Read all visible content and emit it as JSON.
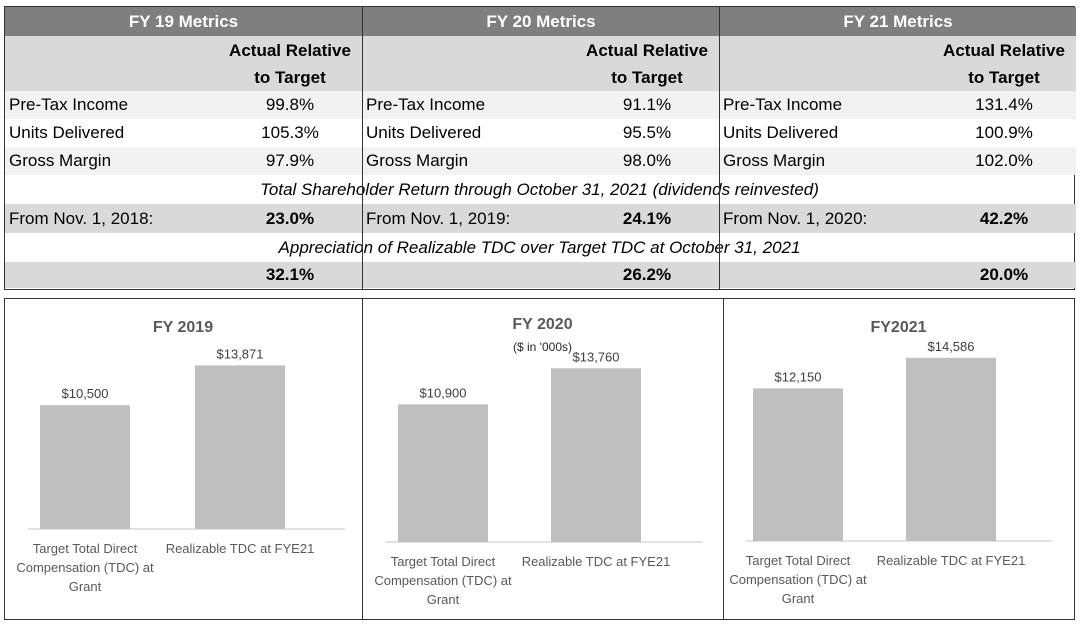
{
  "table": {
    "headers": [
      "FY 19 Metrics",
      "FY 20 Metrics",
      "FY 21 Metrics"
    ],
    "col_header": [
      "Actual Relative",
      "to Target"
    ],
    "metric_rows": [
      {
        "label": "Pre-Tax Income",
        "values": [
          "99.8%",
          "91.1%",
          "131.4%"
        ]
      },
      {
        "label": "Units Delivered",
        "values": [
          "105.3%",
          "95.5%",
          "100.9%"
        ]
      },
      {
        "label": "Gross Margin",
        "values": [
          "97.9%",
          "98.0%",
          "102.0%"
        ]
      }
    ],
    "tsr_title": "Total Shareholder Return through October 31, 2021 (dividends reinvested)",
    "tsr_row": [
      {
        "label": "From Nov. 1, 2018:",
        "value": "23.0%"
      },
      {
        "label": "From Nov. 1, 2019:",
        "value": "24.1%"
      },
      {
        "label": "From Nov. 1, 2020:",
        "value": "42.2%"
      }
    ],
    "appreciation_title": "Appreciation of Realizable TDC over Target TDC at October 31, 2021",
    "appreciation_values": [
      "32.1%",
      "26.2%",
      "20.0%"
    ]
  },
  "chart_data": [
    {
      "type": "bar",
      "title": "FY 2019",
      "subtitle": "",
      "categories": [
        "Target Total Direct Compensation (TDC) at Grant",
        "Realizable TDC at FYE21"
      ],
      "category_lines": [
        [
          "Target Total Direct",
          "Compensation (TDC) at",
          "Grant"
        ],
        [
          "Realizable TDC at FYE21"
        ]
      ],
      "values": [
        10500,
        13871
      ],
      "value_labels": [
        "$10,500",
        "$13,871"
      ],
      "ylim": [
        0,
        16000
      ],
      "bar_color": "#bfbfbf"
    },
    {
      "type": "bar",
      "title": "FY 2020",
      "subtitle": "($ in '000s)",
      "categories": [
        "Target Total Direct Compensation (TDC) at Grant",
        "Realizable TDC at FYE21"
      ],
      "category_lines": [
        [
          "Target Total Direct",
          "Compensation (TDC) at",
          "Grant"
        ],
        [
          "Realizable TDC at FYE21"
        ]
      ],
      "values": [
        10900,
        13760
      ],
      "value_labels": [
        "$10,900",
        "$13,760"
      ],
      "ylim": [
        0,
        16000
      ],
      "bar_color": "#bfbfbf"
    },
    {
      "type": "bar",
      "title": "FY2021",
      "subtitle": "",
      "categories": [
        "Target Total Direct Compensation (TDC) at Grant",
        "Realizable TDC at FYE21"
      ],
      "category_lines": [
        [
          "Target Total Direct",
          "Compensation (TDC) at",
          "Grant"
        ],
        [
          "Realizable TDC at FYE21"
        ]
      ],
      "values": [
        12150,
        14586
      ],
      "value_labels": [
        "$12,150",
        "$14,586"
      ],
      "ylim": [
        0,
        16000
      ],
      "bar_color": "#bfbfbf"
    }
  ],
  "colors": {
    "header_bg": "#7f7f7f",
    "band_gray": "#d9d9d9",
    "band_light": "#f2f2f2",
    "bar": "#bfbfbf"
  }
}
